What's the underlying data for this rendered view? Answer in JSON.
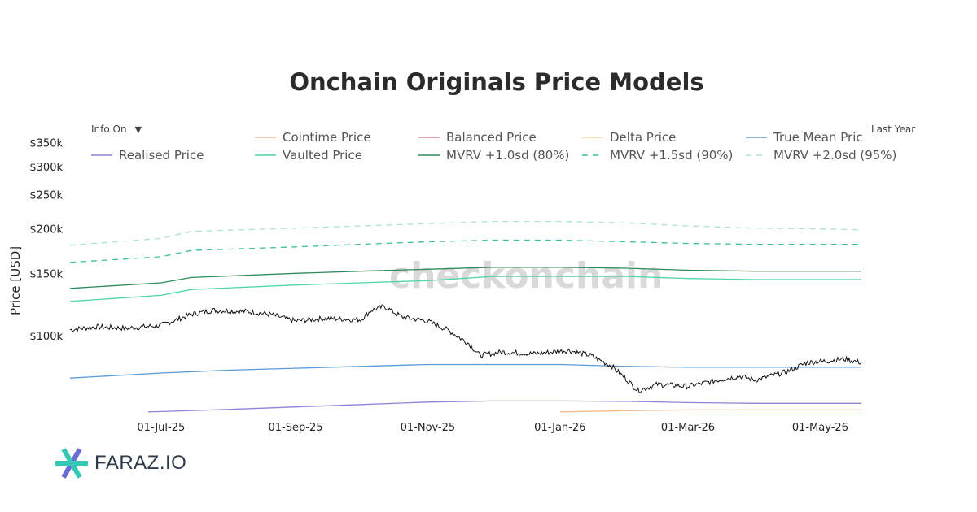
{
  "header": {
    "info_toggle": "Info On",
    "info_arrow": "▼",
    "range_button": "Last Year"
  },
  "brand": {
    "name": "FARAZ.IO",
    "logo_colors": [
      "#35c9b5",
      "#6b6cd6"
    ]
  },
  "watermark": "checkonchain",
  "chart_data": {
    "type": "line",
    "title": "Onchain Originals Price Models",
    "ylabel": "Price [USD]",
    "xlabel": "",
    "y_scale": "log",
    "ylim": [
      60000,
      380000
    ],
    "xlim": [
      "2025-05-20",
      "2026-05-20"
    ],
    "x_ticks": [
      {
        "date": "2025-07-01",
        "label": "01-Jul-25"
      },
      {
        "date": "2025-09-01",
        "label": "01-Sep-25"
      },
      {
        "date": "2025-11-01",
        "label": "01-Nov-25"
      },
      {
        "date": "2026-01-01",
        "label": "01-Jan-26"
      },
      {
        "date": "2026-03-01",
        "label": "01-Mar-26"
      },
      {
        "date": "2026-05-01",
        "label": "01-May-26"
      }
    ],
    "y_ticks": [
      {
        "value": 100000,
        "label": "$100k"
      },
      {
        "value": 150000,
        "label": "$150k"
      },
      {
        "value": 200000,
        "label": "$200k"
      },
      {
        "value": 250000,
        "label": "$250k"
      },
      {
        "value": 300000,
        "label": "$300k"
      },
      {
        "value": 350000,
        "label": "$350k"
      }
    ],
    "grid": false,
    "legend_position": "top",
    "legend": [
      {
        "name": "Cointime Price",
        "color": "#f5b987",
        "dash": false
      },
      {
        "name": "Balanced Price",
        "color": "#e97a8e",
        "dash": false
      },
      {
        "name": "Delta Price",
        "color": "#f7d38c",
        "dash": false
      },
      {
        "name": "True Mean Pric",
        "color": "#5b9bd5",
        "dash": false
      },
      {
        "name": "Realised Price",
        "color": "#8c84d6",
        "dash": false
      },
      {
        "name": "Vaulted Price",
        "color": "#4fd6a6",
        "dash": false
      },
      {
        "name": "MVRV +1.0sd (80%)",
        "color": "#2e8b57",
        "dash": false
      },
      {
        "name": "MVRV +1.5sd (90%)",
        "color": "#3cbfa0",
        "dash": true
      },
      {
        "name": "MVRV +2.0sd (95%)",
        "color": "#a9e4d4",
        "dash": true
      }
    ],
    "series": [
      {
        "name": "MVRV +2.0sd (95%)",
        "color": "#a9e4d4",
        "dash": true,
        "x": [
          "2025-05-20",
          "2025-07-01",
          "2025-07-15",
          "2025-09-01",
          "2025-10-01",
          "2025-11-01",
          "2025-12-01",
          "2026-01-01",
          "2026-02-01",
          "2026-03-01",
          "2026-04-01",
          "2026-05-01",
          "2026-05-20"
        ],
        "y": [
          180000,
          188000,
          197000,
          201000,
          204000,
          207000,
          210000,
          210000,
          208000,
          204000,
          201000,
          200000,
          199000
        ]
      },
      {
        "name": "MVRV +1.5sd (90%)",
        "color": "#3cbfa0",
        "dash": true,
        "x": [
          "2025-05-20",
          "2025-07-01",
          "2025-07-15",
          "2025-09-01",
          "2025-10-01",
          "2025-11-01",
          "2025-12-01",
          "2026-01-01",
          "2026-02-01",
          "2026-03-01",
          "2026-04-01",
          "2026-05-01",
          "2026-05-20"
        ],
        "y": [
          161000,
          167000,
          174000,
          178000,
          181000,
          184000,
          186000,
          186000,
          184000,
          182000,
          181000,
          181000,
          181000
        ]
      },
      {
        "name": "MVRV +1.0sd (80%)",
        "color": "#2e8b57",
        "dash": false,
        "x": [
          "2025-05-20",
          "2025-07-01",
          "2025-07-15",
          "2025-09-01",
          "2025-10-01",
          "2025-11-01",
          "2025-12-01",
          "2026-01-01",
          "2026-02-01",
          "2026-03-01",
          "2026-04-01",
          "2026-05-01",
          "2026-05-20"
        ],
        "y": [
          136000,
          141000,
          146000,
          150000,
          152000,
          154000,
          156000,
          156000,
          155000,
          153000,
          152000,
          152000,
          152000
        ]
      },
      {
        "name": "Vaulted Price",
        "color": "#4fd6a6",
        "dash": false,
        "x": [
          "2025-05-20",
          "2025-07-01",
          "2025-07-15",
          "2025-09-01",
          "2025-10-01",
          "2025-11-01",
          "2025-12-01",
          "2026-01-01",
          "2026-02-01",
          "2026-03-01",
          "2026-04-01",
          "2026-05-01",
          "2026-05-20"
        ],
        "y": [
          125000,
          130000,
          135000,
          139000,
          141000,
          143000,
          147000,
          147000,
          147000,
          145000,
          144000,
          144000,
          144000
        ]
      },
      {
        "name": "True Mean Pric",
        "color": "#5b9bd5",
        "dash": false,
        "x": [
          "2025-05-20",
          "2025-07-01",
          "2025-08-01",
          "2025-09-01",
          "2025-10-01",
          "2025-11-01",
          "2025-12-01",
          "2026-01-01",
          "2026-02-01",
          "2026-03-01",
          "2026-04-01",
          "2026-05-01",
          "2026-05-20"
        ],
        "y": [
          76000,
          78500,
          80000,
          81000,
          82000,
          83000,
          83000,
          83000,
          82000,
          81500,
          81500,
          81500,
          81500
        ]
      },
      {
        "name": "Realised Price",
        "color": "#8c84d6",
        "dash": false,
        "x": [
          "2025-06-25",
          "2025-08-01",
          "2025-09-01",
          "2025-10-01",
          "2025-11-01",
          "2025-12-01",
          "2026-01-01",
          "2026-02-01",
          "2026-03-01",
          "2026-04-01",
          "2026-05-01",
          "2026-05-20"
        ],
        "y": [
          61000,
          62000,
          63000,
          64000,
          65000,
          65500,
          65500,
          65300,
          64800,
          64500,
          64500,
          64500
        ]
      },
      {
        "name": "Cointime Price",
        "color": "#f5b987",
        "dash": false,
        "x": [
          "2026-01-01",
          "2026-02-01",
          "2026-03-01",
          "2026-04-01",
          "2026-05-01",
          "2026-05-20"
        ],
        "y": [
          61000,
          61500,
          61800,
          61800,
          61800,
          61800
        ]
      },
      {
        "name": "Price",
        "color": "#111111",
        "dash": false,
        "x": [
          "2025-05-20",
          "2025-06-01",
          "2025-06-15",
          "2025-07-01",
          "2025-07-15",
          "2025-07-25",
          "2025-08-10",
          "2025-08-20",
          "2025-09-01",
          "2025-09-15",
          "2025-10-01",
          "2025-10-06",
          "2025-10-12",
          "2025-10-20",
          "2025-11-01",
          "2025-11-10",
          "2025-11-20",
          "2025-11-25",
          "2025-12-05",
          "2025-12-20",
          "2026-01-05",
          "2026-01-15",
          "2026-01-25",
          "2026-02-01",
          "2026-02-06",
          "2026-02-15",
          "2026-03-01",
          "2026-03-15",
          "2026-03-25",
          "2026-04-01",
          "2026-04-15",
          "2026-04-25",
          "2026-05-05",
          "2026-05-12",
          "2026-05-20"
        ],
        "y": [
          104000,
          106000,
          105000,
          107000,
          115000,
          118000,
          117000,
          115000,
          110000,
          112000,
          111000,
          118000,
          121000,
          113000,
          110000,
          104000,
          95000,
          88000,
          90000,
          89000,
          91000,
          88000,
          82000,
          75000,
          70000,
          73000,
          72000,
          75000,
          77000,
          75000,
          79000,
          84000,
          85000,
          86000,
          84000
        ]
      }
    ]
  }
}
